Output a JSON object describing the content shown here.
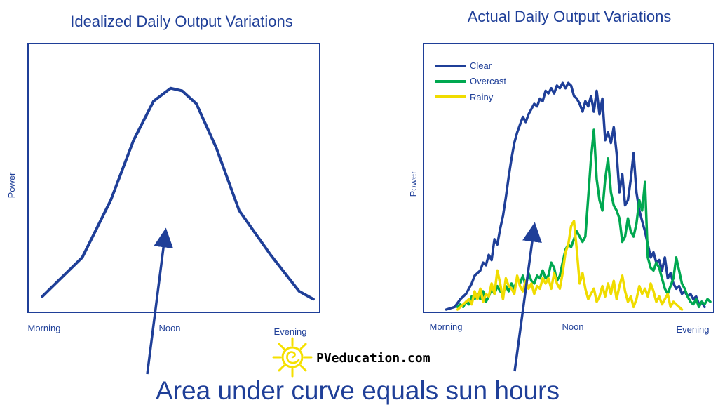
{
  "footer": {
    "caption": "Area under curve equals sun hours",
    "brand": "PVeducation.com",
    "logo_icon": "sun-spiral-icon",
    "logo_color": "#f5e000"
  },
  "colors": {
    "frame": "#1f3f98",
    "text": "#1f3f98",
    "clear": "#1f3f98",
    "overcast": "#00a850",
    "rainy": "#f0dc00"
  },
  "chart_data": [
    {
      "type": "line",
      "title": "Idealized Daily Output Variations",
      "ylabel": "Power",
      "x_ticks": [
        "Morning",
        "Noon",
        "Evening"
      ],
      "xlim": [
        0,
        100
      ],
      "ylim": [
        0,
        100
      ],
      "grid": false,
      "series": [
        {
          "color": "#1f3f98",
          "points": [
            [
              4,
              5
            ],
            [
              18,
              20
            ],
            [
              28,
              42
            ],
            [
              36,
              65
            ],
            [
              43,
              80
            ],
            [
              49,
              85
            ],
            [
              53,
              84
            ],
            [
              58,
              79
            ],
            [
              65,
              62
            ],
            [
              73,
              38
            ],
            [
              84,
              21
            ],
            [
              94,
              7
            ],
            [
              99,
              4
            ]
          ]
        }
      ]
    },
    {
      "type": "line",
      "title": "Actual Daily Output Variations",
      "ylabel": "Power",
      "x_ticks": [
        "Morning",
        "Noon",
        "Evening"
      ],
      "xlim": [
        0,
        100
      ],
      "ylim": [
        0,
        100
      ],
      "grid": false,
      "legend": "top-left",
      "series": [
        {
          "name": "Clear",
          "color": "#1f3f98",
          "points": [
            [
              7,
              0
            ],
            [
              10,
              1
            ],
            [
              12,
              4
            ],
            [
              14,
              6
            ],
            [
              16,
              10
            ],
            [
              17,
              13
            ],
            [
              19,
              15
            ],
            [
              20,
              18
            ],
            [
              21,
              17
            ],
            [
              22,
              21
            ],
            [
              23,
              19
            ],
            [
              24,
              27
            ],
            [
              25,
              25
            ],
            [
              26,
              31
            ],
            [
              27,
              36
            ],
            [
              28,
              43
            ],
            [
              29,
              51
            ],
            [
              30,
              58
            ],
            [
              31,
              64
            ],
            [
              32,
              68
            ],
            [
              33,
              71
            ],
            [
              34,
              74
            ],
            [
              35,
              72
            ],
            [
              36,
              75
            ],
            [
              37,
              77
            ],
            [
              38,
              79
            ],
            [
              39,
              78
            ],
            [
              40,
              81
            ],
            [
              41,
              80
            ],
            [
              42,
              84
            ],
            [
              43,
              83
            ],
            [
              44,
              85
            ],
            [
              45,
              83
            ],
            [
              46,
              86
            ],
            [
              47,
              85
            ],
            [
              48,
              87
            ],
            [
              49,
              85
            ],
            [
              50,
              87
            ],
            [
              51,
              86
            ],
            [
              52,
              82
            ],
            [
              53,
              81
            ],
            [
              54,
              79
            ],
            [
              55,
              76
            ],
            [
              56,
              80
            ],
            [
              57,
              78
            ],
            [
              58,
              82
            ],
            [
              59,
              76
            ],
            [
              60,
              84
            ],
            [
              61,
              75
            ],
            [
              62,
              81
            ],
            [
              63,
              65
            ],
            [
              64,
              68
            ],
            [
              65,
              64
            ],
            [
              66,
              70
            ],
            [
              67,
              60
            ],
            [
              68,
              45
            ],
            [
              69,
              52
            ],
            [
              70,
              40
            ],
            [
              71,
              42
            ],
            [
              72,
              50
            ],
            [
              73,
              60
            ],
            [
              74,
              45
            ],
            [
              75,
              38
            ],
            [
              76,
              34
            ],
            [
              77,
              30
            ],
            [
              78,
              25
            ],
            [
              79,
              20
            ],
            [
              80,
              22
            ],
            [
              81,
              18
            ],
            [
              82,
              19
            ],
            [
              83,
              15
            ],
            [
              84,
              20
            ],
            [
              85,
              12
            ],
            [
              86,
              14
            ],
            [
              87,
              10
            ],
            [
              88,
              8
            ],
            [
              89,
              9
            ],
            [
              90,
              6
            ],
            [
              91,
              7
            ],
            [
              92,
              5
            ],
            [
              93,
              6
            ],
            [
              94,
              4
            ],
            [
              95,
              5
            ],
            [
              96,
              2
            ],
            [
              97,
              3
            ],
            [
              98,
              1
            ]
          ]
        },
        {
          "name": "Overcast",
          "color": "#00a850",
          "points": [
            [
              11,
              1
            ],
            [
              12,
              2
            ],
            [
              13,
              1
            ],
            [
              14,
              3
            ],
            [
              15,
              2
            ],
            [
              16,
              5
            ],
            [
              17,
              4
            ],
            [
              18,
              6
            ],
            [
              19,
              4
            ],
            [
              20,
              7
            ],
            [
              21,
              3
            ],
            [
              22,
              5
            ],
            [
              23,
              8
            ],
            [
              24,
              6
            ],
            [
              25,
              9
            ],
            [
              26,
              7
            ],
            [
              27,
              6
            ],
            [
              28,
              9
            ],
            [
              29,
              7
            ],
            [
              30,
              10
            ],
            [
              31,
              8
            ],
            [
              32,
              12
            ],
            [
              33,
              10
            ],
            [
              34,
              13
            ],
            [
              35,
              9
            ],
            [
              36,
              14
            ],
            [
              37,
              11
            ],
            [
              38,
              10
            ],
            [
              39,
              13
            ],
            [
              40,
              12
            ],
            [
              41,
              15
            ],
            [
              42,
              12
            ],
            [
              43,
              13
            ],
            [
              44,
              18
            ],
            [
              45,
              16
            ],
            [
              46,
              11
            ],
            [
              47,
              13
            ],
            [
              48,
              18
            ],
            [
              49,
              23
            ],
            [
              50,
              25
            ],
            [
              51,
              24
            ],
            [
              52,
              27
            ],
            [
              53,
              30
            ],
            [
              54,
              28
            ],
            [
              55,
              26
            ],
            [
              56,
              28
            ],
            [
              57,
              43
            ],
            [
              58,
              58
            ],
            [
              59,
              69
            ],
            [
              60,
              50
            ],
            [
              61,
              42
            ],
            [
              62,
              38
            ],
            [
              63,
              50
            ],
            [
              64,
              58
            ],
            [
              65,
              45
            ],
            [
              66,
              40
            ],
            [
              67,
              38
            ],
            [
              68,
              35
            ],
            [
              69,
              26
            ],
            [
              70,
              28
            ],
            [
              71,
              35
            ],
            [
              72,
              30
            ],
            [
              73,
              28
            ],
            [
              74,
              33
            ],
            [
              75,
              42
            ],
            [
              76,
              38
            ],
            [
              77,
              49
            ],
            [
              78,
              20
            ],
            [
              79,
              16
            ],
            [
              80,
              15
            ],
            [
              81,
              18
            ],
            [
              82,
              16
            ],
            [
              83,
              12
            ],
            [
              84,
              8
            ],
            [
              85,
              6
            ],
            [
              86,
              9
            ],
            [
              87,
              12
            ],
            [
              88,
              20
            ],
            [
              89,
              15
            ],
            [
              90,
              10
            ],
            [
              91,
              8
            ],
            [
              92,
              5
            ],
            [
              93,
              3
            ],
            [
              94,
              2
            ],
            [
              95,
              4
            ],
            [
              96,
              1
            ],
            [
              97,
              3
            ],
            [
              98,
              2
            ],
            [
              99,
              4
            ],
            [
              100,
              3
            ]
          ]
        },
        {
          "name": "Rainy",
          "color": "#f0dc00",
          "points": [
            [
              11,
              0
            ],
            [
              12,
              1
            ],
            [
              13,
              2
            ],
            [
              14,
              3
            ],
            [
              15,
              4
            ],
            [
              16,
              2
            ],
            [
              17,
              7
            ],
            [
              18,
              4
            ],
            [
              19,
              8
            ],
            [
              20,
              3
            ],
            [
              21,
              6
            ],
            [
              22,
              5
            ],
            [
              23,
              10
            ],
            [
              24,
              6
            ],
            [
              25,
              15
            ],
            [
              26,
              10
            ],
            [
              27,
              4
            ],
            [
              28,
              12
            ],
            [
              29,
              9
            ],
            [
              30,
              8
            ],
            [
              31,
              6
            ],
            [
              32,
              13
            ],
            [
              33,
              9
            ],
            [
              34,
              7
            ],
            [
              35,
              11
            ],
            [
              36,
              8
            ],
            [
              37,
              10
            ],
            [
              38,
              6
            ],
            [
              39,
              9
            ],
            [
              40,
              8
            ],
            [
              41,
              12
            ],
            [
              42,
              10
            ],
            [
              43,
              12
            ],
            [
              44,
              8
            ],
            [
              45,
              14
            ],
            [
              46,
              10
            ],
            [
              47,
              8
            ],
            [
              48,
              14
            ],
            [
              49,
              22
            ],
            [
              50,
              25
            ],
            [
              51,
              32
            ],
            [
              52,
              34
            ],
            [
              53,
              23
            ],
            [
              54,
              10
            ],
            [
              55,
              14
            ],
            [
              56,
              8
            ],
            [
              57,
              4
            ],
            [
              58,
              6
            ],
            [
              59,
              8
            ],
            [
              60,
              3
            ],
            [
              61,
              5
            ],
            [
              62,
              9
            ],
            [
              63,
              5
            ],
            [
              64,
              10
            ],
            [
              65,
              6
            ],
            [
              66,
              11
            ],
            [
              67,
              4
            ],
            [
              68,
              9
            ],
            [
              69,
              13
            ],
            [
              70,
              7
            ],
            [
              71,
              3
            ],
            [
              72,
              5
            ],
            [
              73,
              1
            ],
            [
              74,
              4
            ],
            [
              75,
              9
            ],
            [
              76,
              6
            ],
            [
              77,
              8
            ],
            [
              78,
              5
            ],
            [
              79,
              10
            ],
            [
              80,
              7
            ],
            [
              81,
              3
            ],
            [
              82,
              5
            ],
            [
              83,
              2
            ],
            [
              84,
              4
            ],
            [
              85,
              6
            ],
            [
              86,
              1
            ],
            [
              87,
              3
            ],
            [
              88,
              2
            ],
            [
              89,
              1
            ],
            [
              90,
              0
            ]
          ]
        }
      ]
    }
  ]
}
